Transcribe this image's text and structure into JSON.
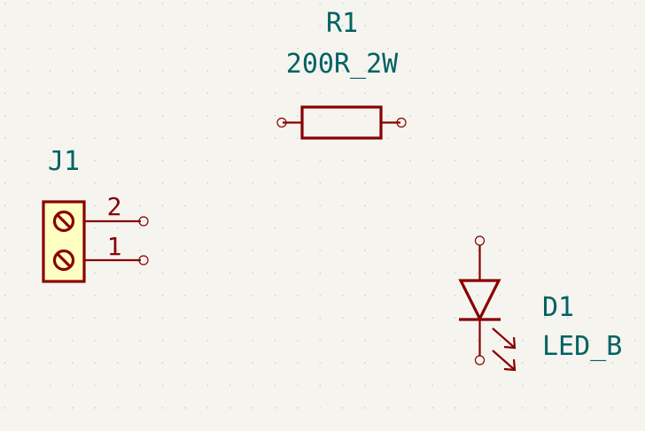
{
  "components": {
    "resistor": {
      "ref": "R1",
      "value": "200R_2W"
    },
    "connector": {
      "ref": "J1",
      "pin_numbers": [
        "2",
        "1"
      ],
      "body_fill": "#ffffc2"
    },
    "led": {
      "ref": "D1",
      "value": "LED_B"
    }
  },
  "colors": {
    "background": "#f5f4ef",
    "grid_dot": "#c9c9c9",
    "symbol": "#880000",
    "text": "#006262"
  }
}
